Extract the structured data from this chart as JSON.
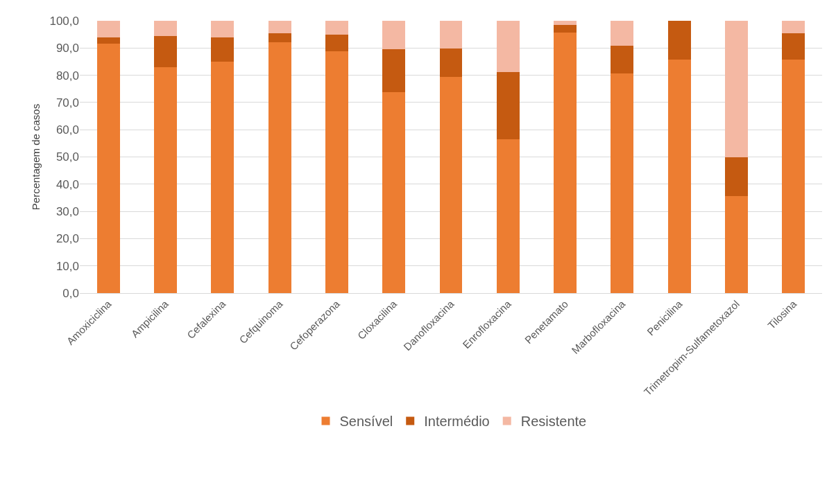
{
  "chart_data": {
    "type": "bar",
    "stacked": true,
    "ylabel": "Percentagem de casos",
    "categories": [
      "Amoxiciclina",
      "Ampicilina",
      "Cefalexina",
      "Cefquinoma",
      "Cefoperazona",
      "Cloxacilina",
      "Danofloxacina",
      "Enrofloxacina",
      "Penetamato",
      "Marbofloxacina",
      "Penicilina",
      "Trimetropim-Sulfametoxazol",
      "Tilosina"
    ],
    "series": [
      {
        "name": "Sensível",
        "color": "#ed7d31",
        "values": [
          91.7,
          83.0,
          85.0,
          92.1,
          88.7,
          73.7,
          79.5,
          56.5,
          95.8,
          80.6,
          85.8,
          35.7,
          85.8
        ]
      },
      {
        "name": "Intermédio",
        "color": "#c55a11",
        "values": [
          2.1,
          11.3,
          8.8,
          3.3,
          6.3,
          15.8,
          10.3,
          24.7,
          2.8,
          10.3,
          14.2,
          14.3,
          9.5
        ]
      },
      {
        "name": "Resistente",
        "color": "#f4b8a3",
        "values": [
          6.2,
          5.7,
          6.2,
          4.6,
          5.0,
          10.5,
          10.2,
          18.8,
          1.4,
          9.1,
          0,
          50.0,
          4.7
        ]
      }
    ],
    "ylim": [
      0,
      100
    ],
    "yticks": [
      {
        "value": 0,
        "label": "0,0"
      },
      {
        "value": 10,
        "label": "10,0"
      },
      {
        "value": 20,
        "label": "20,0"
      },
      {
        "value": 30,
        "label": "30,0"
      },
      {
        "value": 40,
        "label": "40,0"
      },
      {
        "value": 50,
        "label": "50,0"
      },
      {
        "value": 60,
        "label": "60,0"
      },
      {
        "value": 70,
        "label": "70,0"
      },
      {
        "value": 80,
        "label": "80,0"
      },
      {
        "value": 90,
        "label": "90,0"
      },
      {
        "value": 100,
        "label": "100,0"
      }
    ],
    "grid": "y",
    "legend": "bottom"
  }
}
